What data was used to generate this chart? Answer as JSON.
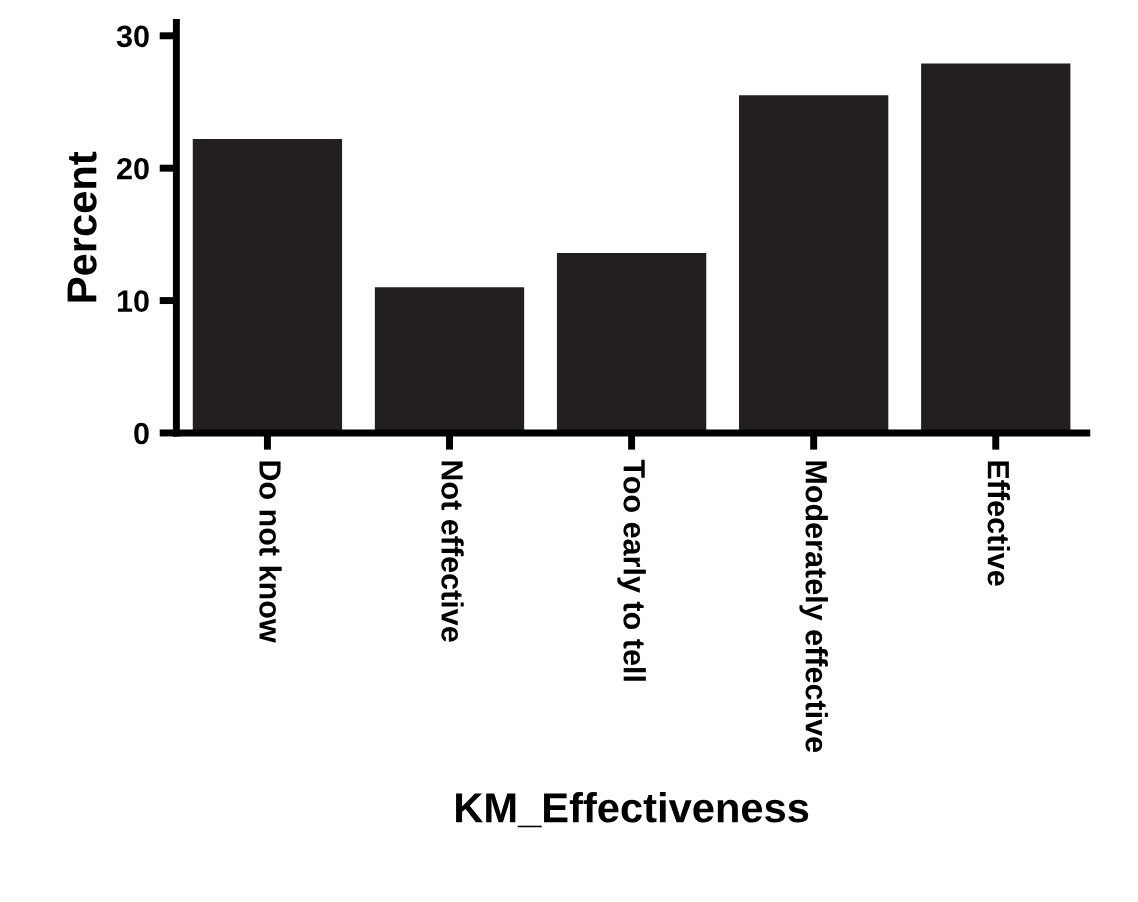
{
  "chart_data": {
    "type": "bar",
    "xlabel": "KM_Effectiveness",
    "ylabel": "Percent",
    "categories": [
      "Do not know",
      "Not effective",
      "Too early to tell",
      "Moderately effective",
      "Effective"
    ],
    "values": [
      22.2,
      11,
      13.6,
      25.5,
      27.9
    ],
    "color": "#231f20",
    "ylim": [
      0,
      31
    ],
    "yticks": [
      0,
      10,
      20,
      30
    ],
    "grid": false
  }
}
